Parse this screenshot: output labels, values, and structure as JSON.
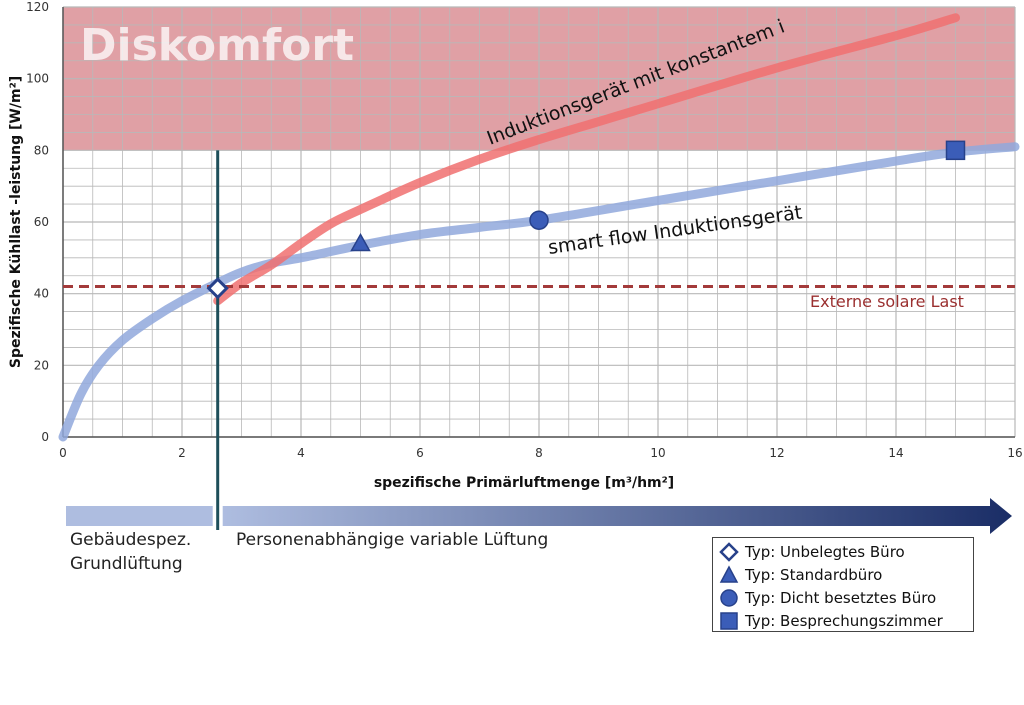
{
  "chart_data": {
    "type": "line",
    "title": "Diskomfort",
    "xlabel": "spezifische Primärluftmenge [m³/hm²]",
    "ylabel": "Spezifische Kühllast  -leistung [W/m²]",
    "xlim": [
      0,
      16
    ],
    "ylim": [
      0,
      120
    ],
    "x_ticks": [
      "0",
      "2",
      "4",
      "6",
      "8",
      "10",
      "12",
      "14",
      "16"
    ],
    "y_ticks": [
      "0",
      "20",
      "40",
      "60",
      "80",
      "100",
      "120"
    ],
    "grid": true,
    "discomfort_zone": {
      "y_from": 80,
      "y_to": 120,
      "color": "#e0a0a5"
    },
    "series": [
      {
        "name": "smart flow Induktionsgerät",
        "color": "#90a8dc",
        "x": [
          0,
          0.3,
          0.6,
          1.0,
          1.5,
          2.0,
          2.6,
          3.0,
          3.5,
          4.0,
          5.0,
          6.0,
          7.0,
          8.0,
          10.0,
          12.0,
          14.0,
          15.0,
          16.0
        ],
        "y": [
          0,
          12,
          20,
          27,
          33,
          38,
          43,
          46,
          48.5,
          50,
          53.5,
          56.5,
          58.5,
          60.5,
          66,
          71.5,
          77,
          79.5,
          81
        ]
      },
      {
        "name": "Induktionsgerät mit konstantem i",
        "color": "#f07070",
        "x": [
          2.6,
          3.0,
          3.5,
          4.0,
          4.5,
          5.0,
          6.0,
          7.0,
          8.0,
          9.0,
          10.0,
          12.0,
          14.0,
          15.0
        ],
        "y": [
          38,
          43,
          48,
          54,
          59.5,
          63.5,
          71,
          77.5,
          83,
          88,
          93,
          103,
          112,
          117
        ]
      },
      {
        "name": "Externe solare Last",
        "color": "#a33a3a",
        "dashed": true,
        "x": [
          0,
          16
        ],
        "y": [
          42,
          42
        ]
      }
    ],
    "markers": [
      {
        "shape": "diamond",
        "x": 2.6,
        "y": 41.5,
        "label": "Typ: Unbelegtes Büro"
      },
      {
        "shape": "triangle",
        "x": 5.0,
        "y": 54,
        "label": "Typ: Standardbüro"
      },
      {
        "shape": "circle",
        "x": 8.0,
        "y": 60.5,
        "label": "Typ: Dicht besetztes Büro"
      },
      {
        "shape": "square",
        "x": 15.0,
        "y": 80,
        "label": "Typ: Besprechungszimmer"
      }
    ],
    "vertical_line": {
      "x": 2.6,
      "color": "#1e4f5a"
    },
    "annotations": {
      "smart_flow": "smart flow Induktionsgerät",
      "konstant": "Induktionsgerät mit konstantem i",
      "solar": "Externe solare Last",
      "zone": "Diskomfort"
    }
  },
  "lower": {
    "left_label_line1": "Gebäudespez.",
    "left_label_line2": "Grundlüftung",
    "right_label": "Personenabhängige variable Lüftung"
  },
  "legend": {
    "items": [
      {
        "label": "Typ: Unbelegtes Büro",
        "shape": "diamond"
      },
      {
        "label": "Typ: Standardbüro",
        "shape": "triangle"
      },
      {
        "label": "Typ: Dicht besetztes Büro",
        "shape": "circle"
      },
      {
        "label": "Typ: Besprechungszimmer",
        "shape": "square"
      }
    ]
  },
  "colors": {
    "marker_fill": "#3b5db8",
    "marker_stroke": "#27418a",
    "arrow_start": "#aebde0",
    "arrow_end": "#1a2d66",
    "grid": "#b8b8b8"
  }
}
